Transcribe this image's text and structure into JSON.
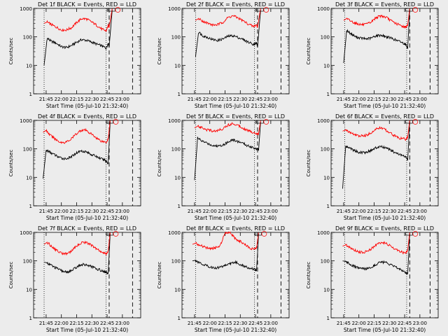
{
  "figure": {
    "background": "#ececec",
    "colors": {
      "black_series": "#000000",
      "red_series": "#ff0000",
      "axes": "#000000"
    }
  },
  "chart_data": [
    {
      "type": "line",
      "title": "Det 1f BLACK = Events, RED = LLD",
      "xlabel": "Start Time (05-Jul-10 21:32:40)",
      "ylabel": "Counts/sec",
      "y_scale": "log",
      "ylim": [
        1,
        1000
      ],
      "xlim": [
        "21:32:40",
        "23:18:00"
      ],
      "x_ticks": [
        "21:45",
        "22:00",
        "22:15",
        "22:30",
        "22:45",
        "23:00"
      ],
      "y_ticks": [
        "1",
        "10",
        "100",
        "1000"
      ],
      "markers": {
        "dotted": [
          "21:43",
          "22:44"
        ],
        "dashed": [
          "22:47",
          "23:10"
        ]
      },
      "grid": false,
      "legend": "none",
      "x": [
        "21:43",
        "21:46",
        "21:50",
        "21:55",
        "22:00",
        "22:05",
        "22:10",
        "22:15",
        "22:20",
        "22:25",
        "22:30",
        "22:35",
        "22:40",
        "22:44",
        "22:46",
        "22:47",
        "22:50"
      ],
      "series": [
        {
          "color": "#000000",
          "values": [
            10,
            90,
            70,
            60,
            45,
            42,
            50,
            65,
            80,
            75,
            65,
            55,
            48,
            40,
            60,
            45,
            900
          ]
        },
        {
          "color": "#ff0000",
          "values": [
            300,
            330,
            270,
            220,
            175,
            175,
            210,
            320,
            440,
            420,
            330,
            250,
            185,
            160,
            250,
            220,
            1000
          ]
        }
      ]
    },
    {
      "type": "line",
      "title": "Det 2f BLACK = Events, RED = LLD",
      "xlabel": "Start Time (05-Jul-10 21:32:40)",
      "ylabel": "Counts/sec",
      "y_scale": "log",
      "ylim": [
        1,
        1000
      ],
      "xlim": [
        "21:32:40",
        "23:18:00"
      ],
      "x_ticks": [
        "21:45",
        "22:00",
        "22:15",
        "22:30",
        "22:45",
        "23:00"
      ],
      "y_ticks": [
        "1",
        "10",
        "100",
        "1000"
      ],
      "markers": {
        "dotted": [
          "21:46",
          "22:44"
        ],
        "dashed": [
          "22:47",
          "23:10"
        ]
      },
      "grid": false,
      "legend": "none",
      "x": [
        "21:46",
        "21:49",
        "21:53",
        "21:58",
        "22:03",
        "22:08",
        "22:13",
        "22:18",
        "22:23",
        "22:28",
        "22:33",
        "22:38",
        "22:43",
        "22:46",
        "22:47",
        "22:50"
      ],
      "series": [
        {
          "color": "#000000",
          "values": [
            20,
            150,
            110,
            95,
            80,
            75,
            85,
            105,
            110,
            95,
            80,
            65,
            55,
            60,
            45,
            900
          ]
        },
        {
          "color": "#ff0000",
          "values": [
            380,
            440,
            360,
            300,
            260,
            270,
            330,
            480,
            550,
            460,
            360,
            280,
            230,
            270,
            220,
            1000
          ]
        }
      ]
    },
    {
      "type": "line",
      "title": "Det 3f BLACK = Events, RED = LLD",
      "xlabel": "Start Time (05-Jul-10 21:32:40)",
      "ylabel": "Counts/sec",
      "y_scale": "log",
      "ylim": [
        1,
        1000
      ],
      "xlim": [
        "21:32:40",
        "23:18:00"
      ],
      "x_ticks": [
        "21:45",
        "22:00",
        "22:15",
        "22:30",
        "22:45",
        "23:00"
      ],
      "y_ticks": [
        "1",
        "10",
        "100",
        "1000"
      ],
      "markers": {
        "dotted": [
          "21:46",
          "22:47"
        ],
        "dashed": [
          "22:50",
          "23:10"
        ]
      },
      "grid": false,
      "legend": "none",
      "x": [
        "21:45",
        "21:48",
        "21:52",
        "21:57",
        "22:02",
        "22:07",
        "22:12",
        "22:17",
        "22:22",
        "22:27",
        "22:32",
        "22:37",
        "22:42",
        "22:46",
        "22:48",
        "22:50"
      ],
      "series": [
        {
          "color": "#000000",
          "values": [
            12,
            170,
            130,
            100,
            90,
            85,
            90,
            110,
            115,
            100,
            90,
            75,
            65,
            55,
            40,
            900
          ]
        },
        {
          "color": "#ff0000",
          "values": [
            380,
            440,
            360,
            300,
            270,
            270,
            330,
            480,
            550,
            480,
            360,
            290,
            240,
            220,
            260,
            1000
          ]
        }
      ]
    },
    {
      "type": "line",
      "title": "Det 4f BLACK = Events, RED = LLD",
      "xlabel": "Start Time (05-Jul-10 21:32:40)",
      "ylabel": "Counts/sec",
      "y_scale": "log",
      "ylim": [
        1,
        1000
      ],
      "xlim": [
        "21:32:40",
        "23:18:00"
      ],
      "x_ticks": [
        "21:45",
        "22:00",
        "22:15",
        "22:30",
        "22:45",
        "23:00"
      ],
      "y_ticks": [
        "1",
        "10",
        "100",
        "1000"
      ],
      "markers": {
        "dotted": [
          "21:43",
          "22:44"
        ],
        "dashed": [
          "22:47",
          "23:10"
        ]
      },
      "grid": false,
      "legend": "none",
      "x": [
        "21:42",
        "21:45",
        "21:49",
        "21:54",
        "21:59",
        "22:04",
        "22:09",
        "22:14",
        "22:19",
        "22:24",
        "22:29",
        "22:34",
        "22:39",
        "22:44",
        "22:46",
        "22:48"
      ],
      "series": [
        {
          "color": "#000000",
          "values": [
            9,
            90,
            75,
            60,
            48,
            45,
            50,
            70,
            85,
            80,
            65,
            55,
            45,
            38,
            30,
            900
          ]
        },
        {
          "color": "#ff0000",
          "values": [
            380,
            450,
            300,
            220,
            170,
            170,
            210,
            320,
            450,
            450,
            340,
            250,
            190,
            170,
            220,
            1000
          ]
        }
      ]
    },
    {
      "type": "line",
      "title": "Det 5f BLACK = Events, RED = LLD",
      "xlabel": "Start Time (05-Jul-10 21:32:40)",
      "ylabel": "Counts/sec",
      "y_scale": "log",
      "ylim": [
        1,
        1000
      ],
      "xlim": [
        "21:32:40",
        "23:18:00"
      ],
      "x_ticks": [
        "21:45",
        "22:00",
        "22:15",
        "22:30",
        "22:45",
        "23:00"
      ],
      "y_ticks": [
        "1",
        "10",
        "100",
        "1000"
      ],
      "markers": {
        "dotted": [
          "21:46",
          "22:44"
        ],
        "dashed": [
          "22:47",
          "23:10"
        ]
      },
      "grid": false,
      "legend": "none",
      "x": [
        "21:45",
        "21:48",
        "21:52",
        "21:57",
        "22:02",
        "22:07",
        "22:12",
        "22:17",
        "22:22",
        "22:27",
        "22:32",
        "22:37",
        "22:42",
        "22:46",
        "22:48",
        "22:50"
      ],
      "series": [
        {
          "color": "#000000",
          "values": [
            8,
            240,
            190,
            160,
            135,
            125,
            135,
            165,
            210,
            185,
            160,
            130,
            115,
            100,
            90,
            900
          ]
        },
        {
          "color": "#ff0000",
          "values": [
            550,
            620,
            580,
            470,
            430,
            430,
            500,
            650,
            780,
            700,
            560,
            450,
            380,
            350,
            340,
            1000
          ]
        }
      ]
    },
    {
      "type": "line",
      "title": "Det 6f BLACK = Events, RED = LLD",
      "xlabel": "Start Time (05-Jul-10 21:32:40)",
      "ylabel": "Counts/sec",
      "y_scale": "log",
      "ylim": [
        1,
        1000
      ],
      "xlim": [
        "21:32:40",
        "23:18:00"
      ],
      "x_ticks": [
        "21:45",
        "22:00",
        "22:15",
        "22:30",
        "22:45",
        "23:00"
      ],
      "y_ticks": [
        "1",
        "10",
        "100",
        "1000"
      ],
      "markers": {
        "dotted": [
          "21:46",
          "22:47"
        ],
        "dashed": [
          "22:50",
          "23:10"
        ]
      },
      "grid": false,
      "legend": "none",
      "x": [
        "21:44",
        "21:47",
        "21:51",
        "21:56",
        "22:01",
        "22:06",
        "22:11",
        "22:16",
        "22:21",
        "22:26",
        "22:31",
        "22:36",
        "22:41",
        "22:46",
        "22:48",
        "22:50"
      ],
      "series": [
        {
          "color": "#000000",
          "values": [
            4,
            120,
            110,
            85,
            75,
            75,
            85,
            105,
            120,
            110,
            90,
            72,
            62,
            52,
            40,
            900
          ]
        },
        {
          "color": "#ff0000",
          "values": [
            420,
            460,
            380,
            310,
            280,
            290,
            350,
            470,
            560,
            470,
            360,
            280,
            230,
            220,
            260,
            1000
          ]
        }
      ]
    },
    {
      "type": "line",
      "title": "Det 7f BLACK = Events, RED = LLD",
      "xlabel": "Start Time (05-Jul-10 21:32:40)",
      "ylabel": "Counts/sec",
      "y_scale": "log",
      "ylim": [
        1,
        1000
      ],
      "xlim": [
        "21:32:40",
        "23:18:00"
      ],
      "x_ticks": [
        "21:45",
        "22:00",
        "22:15",
        "22:30",
        "22:45",
        "23:00"
      ],
      "y_ticks": [
        "1",
        "10",
        "100",
        "1000"
      ],
      "markers": {
        "dotted": [
          "21:43",
          "22:44"
        ],
        "dashed": [
          "22:47",
          "23:10"
        ]
      },
      "grid": false,
      "legend": "none",
      "x": [
        "21:43",
        "21:46",
        "21:50",
        "21:55",
        "22:00",
        "22:05",
        "22:10",
        "22:15",
        "22:20",
        "22:25",
        "22:30",
        "22:35",
        "22:40",
        "22:44",
        "22:46",
        "22:48"
      ],
      "series": [
        {
          "color": "#000000",
          "values": [
            90,
            85,
            70,
            55,
            45,
            40,
            45,
            60,
            75,
            72,
            62,
            52,
            45,
            40,
            35,
            900
          ]
        },
        {
          "color": "#ff0000",
          "values": [
            380,
            450,
            330,
            240,
            185,
            180,
            220,
            330,
            450,
            440,
            340,
            255,
            200,
            175,
            220,
            1000
          ]
        }
      ]
    },
    {
      "type": "line",
      "title": "Det 8f BLACK = Events, RED = LLD",
      "xlabel": "Start Time (05-Jul-10 21:32:40)",
      "ylabel": "Counts/sec",
      "y_scale": "log",
      "ylim": [
        1,
        1000
      ],
      "xlim": [
        "21:32:40",
        "23:18:00"
      ],
      "x_ticks": [
        "21:45",
        "22:00",
        "22:15",
        "22:30",
        "22:45",
        "23:00"
      ],
      "y_ticks": [
        "1",
        "10",
        "100",
        "1000"
      ],
      "markers": {
        "dotted": [
          "21:46",
          "22:44"
        ],
        "dashed": [
          "22:47",
          "23:10"
        ]
      },
      "grid": false,
      "legend": "none",
      "x": [
        "21:43",
        "21:46",
        "21:50",
        "21:55",
        "22:00",
        "22:05",
        "22:10",
        "22:15",
        "22:20",
        "22:25",
        "22:30",
        "22:35",
        "22:40",
        "22:44",
        "22:46",
        "22:48"
      ],
      "series": [
        {
          "color": "#000000",
          "values": [
            100,
            105,
            85,
            72,
            62,
            55,
            60,
            70,
            80,
            90,
            75,
            62,
            55,
            50,
            45,
            900
          ]
        },
        {
          "color": "#ff0000",
          "values": [
            380,
            420,
            360,
            300,
            270,
            280,
            330,
            1000,
            1000,
            600,
            480,
            360,
            280,
            250,
            280,
            1000
          ]
        }
      ]
    },
    {
      "type": "line",
      "title": "Det 9f BLACK = Events, RED = LLD",
      "xlabel": "Start Time (05-Jul-10 21:32:40)",
      "ylabel": "Counts/sec",
      "y_scale": "log",
      "ylim": [
        1,
        1000
      ],
      "xlim": [
        "21:32:40",
        "23:18:00"
      ],
      "x_ticks": [
        "21:45",
        "22:00",
        "22:15",
        "22:30",
        "22:45",
        "23:00"
      ],
      "y_ticks": [
        "1",
        "10",
        "100",
        "1000"
      ],
      "markers": {
        "dotted": [
          "21:46",
          "22:47"
        ],
        "dashed": [
          "22:50",
          "23:10"
        ]
      },
      "grid": false,
      "legend": "none",
      "x": [
        "21:44",
        "21:47",
        "21:51",
        "21:56",
        "22:01",
        "22:06",
        "22:11",
        "22:16",
        "22:21",
        "22:26",
        "22:31",
        "22:36",
        "22:41",
        "22:46",
        "22:48",
        "22:50"
      ],
      "series": [
        {
          "color": "#000000",
          "values": [
            100,
            95,
            78,
            62,
            55,
            52,
            58,
            72,
            92,
            88,
            72,
            60,
            50,
            40,
            35,
            900
          ]
        },
        {
          "color": "#ff0000",
          "values": [
            330,
            360,
            300,
            240,
            200,
            205,
            250,
            340,
            440,
            420,
            330,
            260,
            210,
            185,
            240,
            1000
          ]
        }
      ]
    }
  ]
}
